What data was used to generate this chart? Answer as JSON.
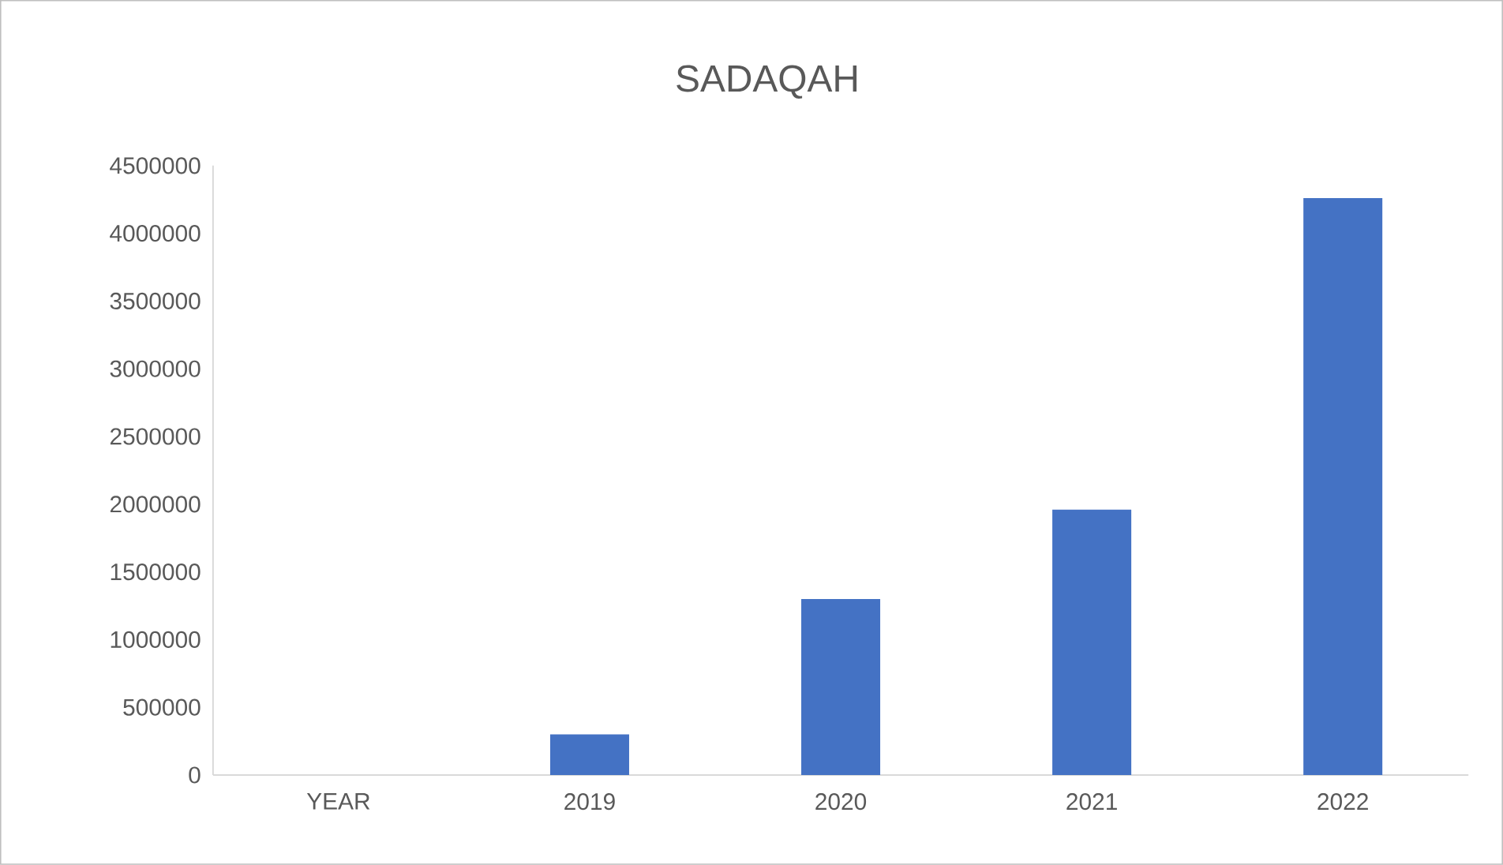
{
  "chart_data": {
    "type": "bar",
    "title": "SADAQAH",
    "categories": [
      "YEAR",
      "2019",
      "2020",
      "2021",
      "2022"
    ],
    "values": [
      null,
      300000,
      1300000,
      1960000,
      4260000
    ],
    "color": "#4472c4",
    "ylim": [
      0,
      4500000
    ],
    "yticks": [
      0,
      500000,
      1000000,
      1500000,
      2000000,
      2500000,
      3000000,
      3500000,
      4000000,
      4500000
    ]
  }
}
